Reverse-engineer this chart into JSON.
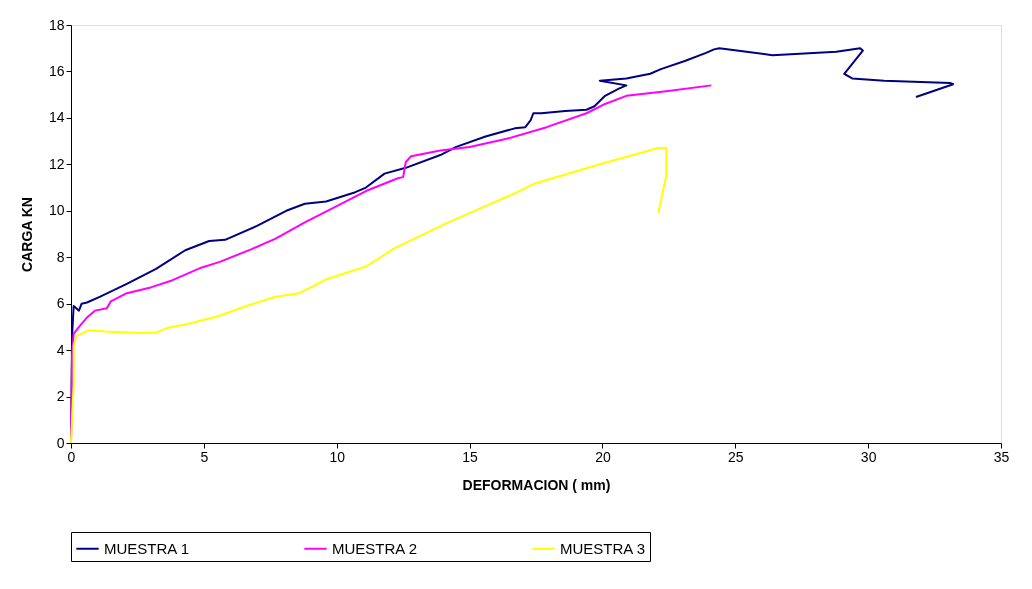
{
  "chart_data": {
    "type": "line",
    "xlabel": "DEFORMACION ( mm)",
    "ylabel": "CARGA KN",
    "xlim": [
      0,
      35
    ],
    "xticks": [
      0,
      5,
      10,
      15,
      20,
      25,
      30,
      35
    ],
    "ylim": [
      0,
      18
    ],
    "yticks": [
      0,
      2,
      4,
      6,
      8,
      10,
      12,
      14,
      16,
      18
    ],
    "grid": false,
    "legend": "bottom",
    "marker": "none",
    "line_style": "solid",
    "series": [
      {
        "name": "MUESTRA 1",
        "color": "#000080",
        "x": [
          0,
          0.04,
          0.1,
          0.2,
          0.3,
          0.4,
          0.6,
          1.1,
          2.1,
          3.2,
          4.3,
          5.2,
          5.8,
          7.0,
          8.1,
          8.8,
          9.6,
          10.7,
          11.1,
          11.8,
          12.6,
          13.9,
          14.5,
          15.6,
          16.7,
          17.1,
          17.3,
          17.4,
          17.7,
          18.6,
          19.4,
          19.7,
          20.1,
          20.6,
          20.9,
          19.9,
          20.9,
          21.8,
          22.2,
          23.1,
          23.9,
          24.2,
          24.4,
          26.4,
          28.8,
          29.7,
          29.8,
          29.1,
          29.4,
          30.6,
          33.1,
          33.2,
          31.8
        ],
        "values": [
          0,
          4.6,
          5.9,
          5.8,
          5.7,
          6.0,
          6.05,
          6.3,
          6.85,
          7.5,
          8.3,
          8.7,
          8.75,
          9.35,
          10.0,
          10.3,
          10.4,
          10.8,
          11.0,
          11.6,
          11.85,
          12.4,
          12.75,
          13.2,
          13.55,
          13.6,
          13.9,
          14.2,
          14.2,
          14.3,
          14.35,
          14.5,
          14.95,
          15.25,
          15.4,
          15.6,
          15.7,
          15.9,
          16.1,
          16.45,
          16.8,
          16.95,
          17.0,
          16.7,
          16.85,
          17.0,
          16.9,
          15.9,
          15.7,
          15.6,
          15.5,
          15.45,
          14.9
        ]
      },
      {
        "name": "MUESTRA 2",
        "color": "#ff00ff",
        "x": [
          0,
          0.04,
          0.1,
          0.3,
          0.6,
          0.9,
          1.35,
          1.5,
          2.1,
          3.0,
          3.8,
          4.9,
          5.6,
          6.8,
          7.7,
          8.8,
          10.0,
          11.1,
          12.3,
          12.5,
          12.6,
          12.8,
          13.9,
          15.0,
          16.4,
          17.9,
          19.4,
          20.1,
          20.9,
          22.4,
          24.1
        ],
        "values": [
          0,
          3.75,
          4.7,
          5.0,
          5.4,
          5.7,
          5.8,
          6.1,
          6.45,
          6.7,
          7.0,
          7.55,
          7.8,
          8.35,
          8.8,
          9.5,
          10.2,
          10.85,
          11.4,
          11.45,
          12.1,
          12.35,
          12.6,
          12.75,
          13.1,
          13.6,
          14.2,
          14.6,
          14.95,
          15.15,
          15.4
        ]
      },
      {
        "name": "MUESTRA 3",
        "color": "#ffff00",
        "x": [
          0,
          0.1,
          0.1,
          0.2,
          0.56,
          0.7,
          1.3,
          2.4,
          3.2,
          3.6,
          4.3,
          5.5,
          6.6,
          7.7,
          8.6,
          9.6,
          11.1,
          12.2,
          14.2,
          16.7,
          17.4,
          19.9,
          22.1,
          22.4,
          22.4,
          22.4,
          22.1
        ],
        "values": [
          0,
          2.5,
          4.2,
          4.6,
          4.8,
          4.85,
          4.8,
          4.75,
          4.75,
          4.95,
          5.1,
          5.45,
          5.9,
          6.3,
          6.45,
          7.05,
          7.6,
          8.4,
          9.5,
          10.75,
          11.15,
          12.0,
          12.7,
          12.7,
          12.35,
          11.5,
          9.9
        ]
      }
    ]
  }
}
